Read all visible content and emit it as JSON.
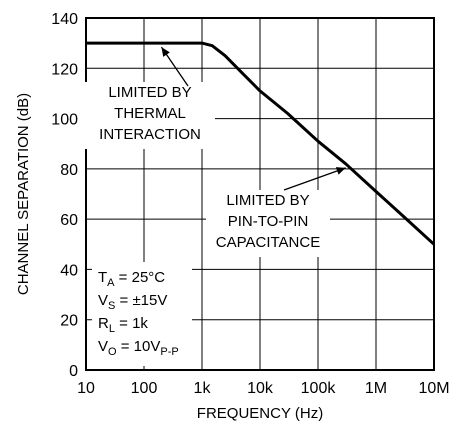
{
  "chart_data": {
    "type": "line",
    "xlabel": "FREQUENCY (Hz)",
    "ylabel": "CHANNEL SEPARATION (dB)",
    "x_scale": "log",
    "xlim": [
      10,
      10000000
    ],
    "ylim": [
      0,
      140
    ],
    "grid": true,
    "x_ticks": [
      {
        "value": 10,
        "label": "10"
      },
      {
        "value": 100,
        "label": "100"
      },
      {
        "value": 1000,
        "label": "1k"
      },
      {
        "value": 10000,
        "label": "10k"
      },
      {
        "value": 100000,
        "label": "100k"
      },
      {
        "value": 1000000,
        "label": "1M"
      },
      {
        "value": 10000000,
        "label": "10M"
      }
    ],
    "y_ticks": [
      {
        "value": 0,
        "label": "0"
      },
      {
        "value": 20,
        "label": "20"
      },
      {
        "value": 40,
        "label": "40"
      },
      {
        "value": 60,
        "label": "60"
      },
      {
        "value": 80,
        "label": "80"
      },
      {
        "value": 100,
        "label": "100"
      },
      {
        "value": 120,
        "label": "120"
      },
      {
        "value": 140,
        "label": "140"
      }
    ],
    "series": [
      {
        "x": [
          10,
          100,
          1000,
          1500,
          2500,
          5000,
          10000,
          30000,
          100000,
          300000,
          1000000,
          3000000,
          10000000
        ],
        "y": [
          130,
          130,
          130,
          129,
          125,
          118,
          111,
          102,
          91,
          82,
          71,
          61,
          50
        ]
      }
    ],
    "annotations": [
      {
        "lines": [
          "LIMITED BY",
          "THERMAL",
          "INTERACTION"
        ],
        "arrow_to": {
          "x": 200,
          "y": 130
        }
      },
      {
        "lines": [
          "LIMITED BY",
          "PIN-TO-PIN",
          "CAPACITANCE"
        ],
        "arrow_to": {
          "x": 300000,
          "y": 82
        }
      }
    ],
    "conditions": [
      {
        "main": "T",
        "sub": "A",
        "rest": " = 25°C"
      },
      {
        "main": "V",
        "sub": "S",
        "rest": " = ±15V"
      },
      {
        "main": "R",
        "sub": "L",
        "rest": " = 1k"
      },
      {
        "main": "V",
        "sub": "O",
        "rest": " = 10V",
        "sub2": "P-P"
      }
    ]
  }
}
